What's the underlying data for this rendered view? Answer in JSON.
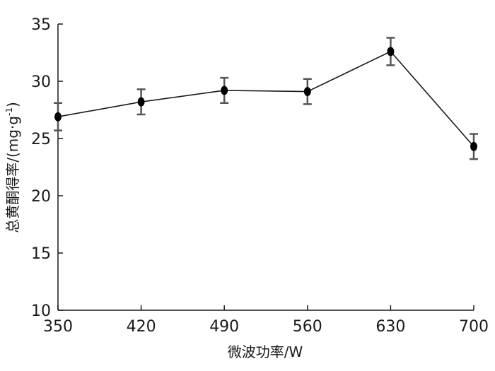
{
  "chart_data": {
    "type": "line",
    "x": [
      350,
      420,
      490,
      560,
      630,
      700
    ],
    "series": [
      {
        "values": [
          26.9,
          28.2,
          29.2,
          29.1,
          32.6,
          24.3
        ],
        "errors": [
          1.2,
          1.1,
          1.1,
          1.1,
          1.2,
          1.1
        ]
      }
    ],
    "xlabel": "微波功率/W",
    "ylabel": "总黄酮得率/(mg·g",
    "ylabel_sup": "-1",
    "ylabel_end": ")",
    "xlim": [
      350,
      700
    ],
    "ylim": [
      10,
      35
    ],
    "xticks": [
      350,
      420,
      490,
      560,
      630,
      700
    ],
    "yticks": [
      10,
      15,
      20,
      25,
      30,
      35
    ],
    "grid": false,
    "colors": {
      "line": "#1a1a1a",
      "marker": "#000000",
      "errorbar": "#555555",
      "axis": "#1a1a1a"
    }
  }
}
